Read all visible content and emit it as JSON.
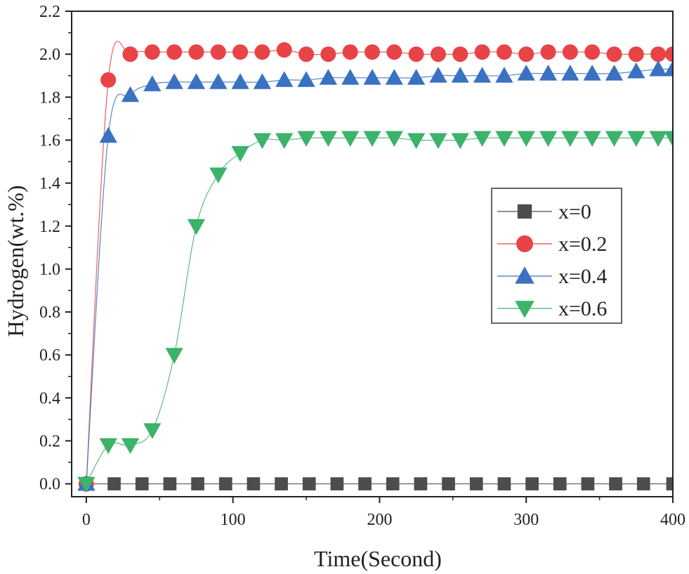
{
  "chart_data": {
    "type": "line",
    "title": "",
    "xlabel": "Time(Second)",
    "ylabel": "Hydrogen(wt.%)",
    "xlim": [
      -10,
      400
    ],
    "ylim": [
      -0.06,
      2.2
    ],
    "x_ticks": [
      0,
      100,
      200,
      300,
      400
    ],
    "x_tick_labels": [
      "0",
      "100",
      "200",
      "300",
      "400"
    ],
    "y_ticks": [
      0.0,
      0.2,
      0.4,
      0.6,
      0.8,
      1.0,
      1.2,
      1.4,
      1.6,
      1.8,
      2.0,
      2.2
    ],
    "y_tick_labels": [
      "0.0",
      "0.2",
      "0.4",
      "0.6",
      "0.8",
      "1.0",
      "1.2",
      "1.4",
      "1.6",
      "1.8",
      "2.0",
      "2.2"
    ],
    "grid": false,
    "legend_position": "center-right",
    "series": [
      {
        "name": "x=0",
        "color": "#4d4d4d",
        "marker": "square",
        "x": [
          0,
          19,
          38,
          57,
          76,
          95,
          114,
          133,
          152,
          171,
          190,
          209,
          228,
          247,
          266,
          285,
          304,
          323,
          342,
          361,
          380,
          400
        ],
        "values": [
          0,
          0,
          0,
          0,
          0,
          0,
          0,
          0,
          0,
          0,
          0,
          0,
          0,
          0,
          0,
          0,
          0,
          0,
          0,
          0,
          0,
          0
        ]
      },
      {
        "name": "x=0.2",
        "color": "#e84346",
        "marker": "circle",
        "x": [
          0,
          15,
          30,
          45,
          60,
          75,
          90,
          105,
          120,
          135,
          150,
          165,
          180,
          195,
          210,
          225,
          240,
          255,
          270,
          285,
          300,
          315,
          330,
          345,
          360,
          375,
          390,
          400
        ],
        "values": [
          0,
          1.88,
          2.0,
          2.01,
          2.01,
          2.01,
          2.01,
          2.01,
          2.01,
          2.02,
          2.0,
          2.0,
          2.01,
          2.01,
          2.01,
          2.0,
          2.0,
          2.0,
          2.01,
          2.01,
          2.0,
          2.01,
          2.01,
          2.01,
          2.0,
          2.0,
          2.0,
          2.0
        ]
      },
      {
        "name": "x=0.4",
        "color": "#3a71c1",
        "marker": "triangle-up",
        "x": [
          0,
          15,
          30,
          45,
          60,
          75,
          90,
          105,
          120,
          135,
          150,
          165,
          180,
          195,
          210,
          225,
          240,
          255,
          270,
          285,
          300,
          315,
          330,
          345,
          360,
          375,
          390,
          400
        ],
        "values": [
          0,
          1.62,
          1.81,
          1.86,
          1.87,
          1.87,
          1.87,
          1.87,
          1.87,
          1.88,
          1.88,
          1.89,
          1.89,
          1.89,
          1.89,
          1.89,
          1.9,
          1.9,
          1.9,
          1.9,
          1.91,
          1.91,
          1.91,
          1.91,
          1.91,
          1.92,
          1.93,
          1.93
        ]
      },
      {
        "name": "x=0.6",
        "color": "#3db26a",
        "marker": "triangle-down",
        "x": [
          0,
          15,
          30,
          45,
          60,
          75,
          90,
          105,
          120,
          135,
          150,
          165,
          180,
          195,
          210,
          225,
          240,
          255,
          270,
          285,
          300,
          315,
          330,
          345,
          360,
          375,
          390,
          400
        ],
        "values": [
          0,
          0.18,
          0.18,
          0.25,
          0.6,
          1.2,
          1.44,
          1.54,
          1.6,
          1.6,
          1.61,
          1.61,
          1.61,
          1.61,
          1.61,
          1.6,
          1.6,
          1.6,
          1.61,
          1.61,
          1.61,
          1.61,
          1.61,
          1.61,
          1.61,
          1.61,
          1.61,
          1.61
        ]
      }
    ]
  }
}
